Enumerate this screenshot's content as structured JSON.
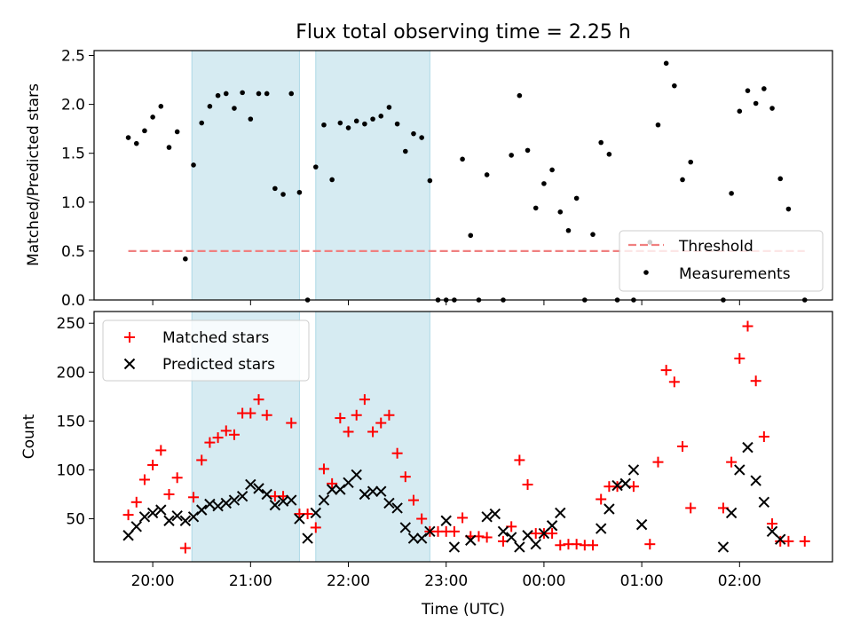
{
  "chart_data": [
    {
      "type": "scatter",
      "title": "Flux total observing time = 2.25 h",
      "ylabel": "Matched/Predicted stars",
      "ylim": [
        0,
        2.55
      ],
      "xlim": [
        "19:24",
        "02:57"
      ],
      "yticks": [
        "0.0",
        "0.5",
        "1.0",
        "1.5",
        "2.0",
        "2.5"
      ],
      "shaded_spans": [
        [
          "20:24",
          "21:30"
        ],
        [
          "21:40",
          "22:50"
        ]
      ],
      "threshold": {
        "name": "Threshold",
        "value": 0.5,
        "x": [
          "19:45",
          "02:40"
        ],
        "color": "#f08080"
      },
      "measurements_name": "Measurements",
      "legend_position": "lower-right",
      "points": [
        [
          "19:45",
          1.66
        ],
        [
          "19:50",
          1.6
        ],
        [
          "19:55",
          1.73
        ],
        [
          "20:00",
          1.87
        ],
        [
          "20:05",
          1.98
        ],
        [
          "20:10",
          1.56
        ],
        [
          "20:15",
          1.72
        ],
        [
          "20:20",
          0.42
        ],
        [
          "20:25",
          1.38
        ],
        [
          "20:30",
          1.81
        ],
        [
          "20:35",
          1.98
        ],
        [
          "20:40",
          2.09
        ],
        [
          "20:45",
          2.11
        ],
        [
          "20:50",
          1.96
        ],
        [
          "20:55",
          2.12
        ],
        [
          "21:00",
          1.85
        ],
        [
          "21:05",
          2.11
        ],
        [
          "21:10",
          2.11
        ],
        [
          "21:15",
          1.14
        ],
        [
          "21:20",
          1.08
        ],
        [
          "21:25",
          2.11
        ],
        [
          "21:30",
          1.1
        ],
        [
          "21:35",
          0.0
        ],
        [
          "21:40",
          1.36
        ],
        [
          "21:45",
          1.79
        ],
        [
          "21:50",
          1.23
        ],
        [
          "21:55",
          1.81
        ],
        [
          "22:00",
          1.76
        ],
        [
          "22:05",
          1.83
        ],
        [
          "22:10",
          1.8
        ],
        [
          "22:15",
          1.85
        ],
        [
          "22:20",
          1.88
        ],
        [
          "22:25",
          1.97
        ],
        [
          "22:30",
          1.8
        ],
        [
          "22:35",
          1.52
        ],
        [
          "22:40",
          1.7
        ],
        [
          "22:45",
          1.66
        ],
        [
          "22:50",
          1.22
        ],
        [
          "22:55",
          0.0
        ],
        [
          "23:00",
          0.0
        ],
        [
          "23:05",
          0.0
        ],
        [
          "23:10",
          1.44
        ],
        [
          "23:15",
          0.66
        ],
        [
          "23:20",
          0.0
        ],
        [
          "23:25",
          1.28
        ],
        [
          "23:35",
          0.0
        ],
        [
          "23:40",
          1.48
        ],
        [
          "23:45",
          2.09
        ],
        [
          "23:50",
          1.53
        ],
        [
          "23:55",
          0.94
        ],
        [
          "00:00",
          1.19
        ],
        [
          "00:05",
          1.33
        ],
        [
          "00:10",
          0.9
        ],
        [
          "00:15",
          0.71
        ],
        [
          "00:20",
          1.04
        ],
        [
          "00:25",
          0.0
        ],
        [
          "00:30",
          0.67
        ],
        [
          "00:35",
          1.61
        ],
        [
          "00:40",
          1.49
        ],
        [
          "00:45",
          0.0
        ],
        [
          "00:55",
          0.0
        ],
        [
          "01:05",
          0.59
        ],
        [
          "01:10",
          1.79
        ],
        [
          "01:15",
          2.42
        ],
        [
          "01:20",
          2.19
        ],
        [
          "01:25",
          1.23
        ],
        [
          "01:30",
          1.41
        ],
        [
          "01:50",
          0.0
        ],
        [
          "01:55",
          1.09
        ],
        [
          "02:00",
          1.93
        ],
        [
          "02:05",
          2.14
        ],
        [
          "02:10",
          2.01
        ],
        [
          "02:15",
          2.16
        ],
        [
          "02:20",
          1.96
        ],
        [
          "02:25",
          1.24
        ],
        [
          "02:30",
          0.93
        ],
        [
          "02:40",
          0.0
        ]
      ]
    },
    {
      "type": "scatter",
      "xlabel": "Time (UTC)",
      "ylabel": "Count",
      "ylim": [
        6,
        262
      ],
      "xlim": [
        "19:24",
        "02:57"
      ],
      "yticks": [
        "50",
        "100",
        "150",
        "200",
        "250"
      ],
      "xticks": [
        "20:00",
        "21:00",
        "22:00",
        "23:00",
        "00:00",
        "01:00",
        "02:00"
      ],
      "shaded_spans": [
        [
          "20:24",
          "21:30"
        ],
        [
          "21:40",
          "22:50"
        ]
      ],
      "legend_position": "upper-left",
      "series": [
        {
          "name": "Matched stars",
          "marker": "plus",
          "color": "#ff0000",
          "points": [
            [
              "19:45",
              54
            ],
            [
              "19:50",
              67
            ],
            [
              "19:55",
              90
            ],
            [
              "20:00",
              105
            ],
            [
              "20:05",
              120
            ],
            [
              "20:10",
              75
            ],
            [
              "20:15",
              92
            ],
            [
              "20:20",
              20
            ],
            [
              "20:25",
              72
            ],
            [
              "20:30",
              110
            ],
            [
              "20:35",
              128
            ],
            [
              "20:40",
              133
            ],
            [
              "20:45",
              140
            ],
            [
              "20:50",
              136
            ],
            [
              "20:55",
              158
            ],
            [
              "21:00",
              158
            ],
            [
              "21:05",
              172
            ],
            [
              "21:10",
              156
            ],
            [
              "21:15",
              73
            ],
            [
              "21:20",
              73
            ],
            [
              "21:25",
              148
            ],
            [
              "21:30",
              55
            ],
            [
              "21:35",
              55
            ],
            [
              "21:40",
              41
            ],
            [
              "21:45",
              101
            ],
            [
              "21:50",
              86
            ],
            [
              "21:55",
              153
            ],
            [
              "22:00",
              139
            ],
            [
              "22:05",
              156
            ],
            [
              "22:10",
              172
            ],
            [
              "22:15",
              139
            ],
            [
              "22:20",
              148
            ],
            [
              "22:25",
              156
            ],
            [
              "22:30",
              117
            ],
            [
              "22:35",
              93
            ],
            [
              "22:40",
              69
            ],
            [
              "22:45",
              50
            ],
            [
              "22:50",
              37
            ],
            [
              "22:55",
              37
            ],
            [
              "23:00",
              37
            ],
            [
              "23:05",
              37
            ],
            [
              "23:10",
              51
            ],
            [
              "23:15",
              32
            ],
            [
              "23:20",
              32
            ],
            [
              "23:25",
              31
            ],
            [
              "23:35",
              27
            ],
            [
              "23:40",
              42
            ],
            [
              "23:45",
              110
            ],
            [
              "23:50",
              85
            ],
            [
              "23:55",
              35
            ],
            [
              "00:00",
              35
            ],
            [
              "00:05",
              35
            ],
            [
              "00:10",
              23
            ],
            [
              "00:15",
              24
            ],
            [
              "00:20",
              24
            ],
            [
              "00:25",
              23
            ],
            [
              "00:30",
              23
            ],
            [
              "00:35",
              70
            ],
            [
              "00:40",
              83
            ],
            [
              "00:45",
              83
            ],
            [
              "00:55",
              83
            ],
            [
              "01:05",
              24
            ],
            [
              "01:10",
              108
            ],
            [
              "01:15",
              202
            ],
            [
              "01:20",
              190
            ],
            [
              "01:25",
              124
            ],
            [
              "01:30",
              61
            ],
            [
              "01:50",
              61
            ],
            [
              "01:55",
              108
            ],
            [
              "02:00",
              214
            ],
            [
              "02:05",
              247
            ],
            [
              "02:10",
              191
            ],
            [
              "02:15",
              134
            ],
            [
              "02:20",
              45
            ],
            [
              "02:25",
              27
            ],
            [
              "02:30",
              27
            ],
            [
              "02:40",
              27
            ]
          ]
        },
        {
          "name": "Predicted stars",
          "marker": "x",
          "color": "#000000",
          "points": [
            [
              "19:45",
              33
            ],
            [
              "19:50",
              42
            ],
            [
              "19:55",
              52
            ],
            [
              "20:00",
              56
            ],
            [
              "20:05",
              59
            ],
            [
              "20:10",
              48
            ],
            [
              "20:15",
              53
            ],
            [
              "20:20",
              48
            ],
            [
              "20:25",
              52
            ],
            [
              "20:30",
              59
            ],
            [
              "20:35",
              65
            ],
            [
              "20:40",
              63
            ],
            [
              "20:45",
              66
            ],
            [
              "20:50",
              69
            ],
            [
              "20:55",
              73
            ],
            [
              "21:00",
              85
            ],
            [
              "21:05",
              81
            ],
            [
              "21:10",
              75
            ],
            [
              "21:15",
              64
            ],
            [
              "21:20",
              68
            ],
            [
              "21:25",
              69
            ],
            [
              "21:30",
              50
            ],
            [
              "21:35",
              30
            ],
            [
              "21:40",
              56
            ],
            [
              "21:45",
              69
            ],
            [
              "21:50",
              80
            ],
            [
              "21:55",
              80
            ],
            [
              "22:00",
              87
            ],
            [
              "22:05",
              95
            ],
            [
              "22:10",
              75
            ],
            [
              "22:15",
              78
            ],
            [
              "22:20",
              78
            ],
            [
              "22:25",
              66
            ],
            [
              "22:30",
              61
            ],
            [
              "22:35",
              41
            ],
            [
              "22:40",
              30
            ],
            [
              "22:45",
              30
            ],
            [
              "22:50",
              37
            ],
            [
              "23:00",
              48
            ],
            [
              "23:05",
              21
            ],
            [
              "23:15",
              28
            ],
            [
              "23:25",
              52
            ],
            [
              "23:30",
              55
            ],
            [
              "23:35",
              37
            ],
            [
              "23:40",
              31
            ],
            [
              "23:45",
              21
            ],
            [
              "23:50",
              33
            ],
            [
              "23:55",
              24
            ],
            [
              "00:00",
              35
            ],
            [
              "00:05",
              43
            ],
            [
              "00:10",
              56
            ],
            [
              "00:35",
              40
            ],
            [
              "00:40",
              60
            ],
            [
              "00:45",
              84
            ],
            [
              "00:50",
              86
            ],
            [
              "00:55",
              100
            ],
            [
              "01:00",
              44
            ],
            [
              "01:50",
              21
            ],
            [
              "01:55",
              56
            ],
            [
              "02:00",
              100
            ],
            [
              "02:05",
              123
            ],
            [
              "02:10",
              89
            ],
            [
              "02:15",
              67
            ],
            [
              "02:20",
              37
            ],
            [
              "02:25",
              29
            ]
          ]
        }
      ]
    }
  ]
}
